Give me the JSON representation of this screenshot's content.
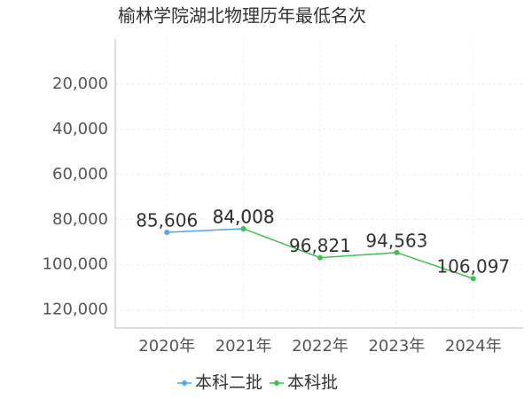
{
  "chart_data": {
    "type": "line",
    "title": "榆林学院湖北物理历年最低名次",
    "categories": [
      "2020年",
      "2021年",
      "2022年",
      "2023年",
      "2024年"
    ],
    "series": [
      {
        "name": "本科二批",
        "color": "#4ea6f0",
        "values": [
          85606,
          84008,
          null,
          null,
          null
        ],
        "value_labels": [
          "85,606",
          "84,008",
          null,
          null,
          null
        ]
      },
      {
        "name": "本科批",
        "color": "#3cc150",
        "values": [
          null,
          84008,
          96821,
          94563,
          106097
        ],
        "value_labels": [
          null,
          "84,008",
          "96,821",
          "94,563",
          "106,097"
        ]
      }
    ],
    "ylim": [
      0,
      128000
    ],
    "inverted": true,
    "yticks": [
      {
        "value": 20000,
        "label": "20,000"
      },
      {
        "value": 40000,
        "label": "40,000"
      },
      {
        "value": 60000,
        "label": "60,000"
      },
      {
        "value": 80000,
        "label": "80,000"
      },
      {
        "value": 100000,
        "label": "100,000"
      },
      {
        "value": 120000,
        "label": "120,000"
      }
    ],
    "grid": true,
    "legend": "bottom"
  }
}
